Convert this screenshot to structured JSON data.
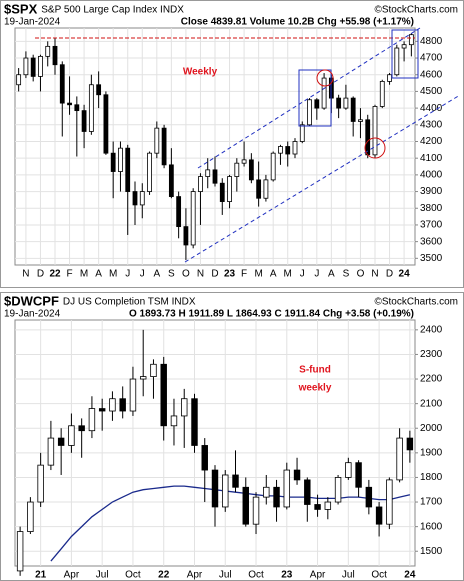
{
  "chart_data": [
    {
      "type": "candlestick",
      "symbol": "$SPX",
      "title": "S&P 500 Large Cap Index INDX",
      "source": "©StockCharts.com",
      "date": "19-Jan-2024",
      "info": "Close 4839.81 Volume 10.2B Chg +55.98 (+1.17%)",
      "annotations": [
        "Weekly"
      ],
      "color": "#000000",
      "grid": true,
      "categories": [
        null,
        "N",
        null,
        "D",
        null,
        "22",
        null,
        "F",
        null,
        "M",
        null,
        "A",
        null,
        "M",
        null,
        "J",
        null,
        "J",
        null,
        "A",
        null,
        "S",
        null,
        "O",
        null,
        "N",
        null,
        "D",
        null,
        "23",
        null,
        "F",
        null,
        "M",
        null,
        "A",
        null,
        "M",
        null,
        "J",
        null,
        "J",
        null,
        "A",
        null,
        "S",
        null,
        "O",
        null,
        "N",
        null,
        "D",
        null,
        "24",
        null
      ],
      "values": [
        [
          4540,
          4640,
          4500,
          4600
        ],
        [
          4600,
          4740,
          4580,
          4700
        ],
        [
          4700,
          4720,
          4560,
          4590
        ],
        [
          4590,
          4720,
          4500,
          4710
        ],
        [
          4710,
          4800,
          4650,
          4770
        ],
        [
          4770,
          4820,
          4600,
          4660
        ],
        [
          4660,
          4680,
          4230,
          4430
        ],
        [
          4430,
          4590,
          4360,
          4420
        ],
        [
          4420,
          4470,
          4110,
          4385
        ],
        [
          4385,
          4420,
          4160,
          4260
        ],
        [
          4260,
          4600,
          4240,
          4540
        ],
        [
          4540,
          4620,
          4400,
          4480
        ],
        [
          4480,
          4500,
          4120,
          4130
        ],
        [
          4130,
          4200,
          3860,
          4020
        ],
        [
          4020,
          4200,
          3900,
          4160
        ],
        [
          4160,
          4180,
          3640,
          3900
        ],
        [
          3900,
          3960,
          3700,
          3820
        ],
        [
          3820,
          3950,
          3740,
          3900
        ],
        [
          3900,
          4140,
          3880,
          4130
        ],
        [
          4130,
          4320,
          4100,
          4280
        ],
        [
          4280,
          4300,
          4040,
          4060
        ],
        [
          4060,
          4160,
          3860,
          3870
        ],
        [
          3870,
          3900,
          3620,
          3690
        ],
        [
          3690,
          3800,
          3490,
          3580
        ],
        [
          3580,
          3920,
          3560,
          3900
        ],
        [
          3900,
          4010,
          3700,
          3990
        ],
        [
          3990,
          4100,
          3920,
          4030
        ],
        [
          4030,
          4110,
          3930,
          3950
        ],
        [
          3950,
          3980,
          3760,
          3840
        ],
        [
          3840,
          4000,
          3800,
          3990
        ],
        [
          3990,
          4100,
          3900,
          4070
        ],
        [
          4070,
          4200,
          4050,
          4090
        ],
        [
          4090,
          4130,
          3950,
          3970
        ],
        [
          3970,
          4080,
          3810,
          3860
        ],
        [
          3860,
          4000,
          3840,
          3970
        ],
        [
          3970,
          4140,
          3960,
          4130
        ],
        [
          4130,
          4180,
          4060,
          4170
        ],
        [
          4170,
          4200,
          4050,
          4125
        ],
        [
          4125,
          4220,
          4100,
          4200
        ],
        [
          4200,
          4320,
          4190,
          4300
        ],
        [
          4300,
          4460,
          4290,
          4450
        ],
        [
          4450,
          4460,
          4330,
          4400
        ],
        [
          4400,
          4610,
          4390,
          4580
        ],
        [
          4580,
          4600,
          4370,
          4460
        ],
        [
          4460,
          4480,
          4340,
          4400
        ],
        [
          4400,
          4540,
          4390,
          4460
        ],
        [
          4460,
          4470,
          4230,
          4320
        ],
        [
          4320,
          4400,
          4220,
          4330
        ],
        [
          4330,
          4360,
          4100,
          4120
        ],
        [
          4120,
          4420,
          4100,
          4410
        ],
        [
          4410,
          4570,
          4400,
          4560
        ],
        [
          4560,
          4610,
          4540,
          4600
        ],
        [
          4600,
          4780,
          4590,
          4760
        ],
        [
          4760,
          4800,
          4680,
          4780
        ],
        [
          4780,
          4850,
          4710,
          4840
        ]
      ],
      "ylim": [
        3460,
        4880
      ],
      "yticks": [
        3500,
        3600,
        3700,
        3800,
        3900,
        4000,
        4100,
        4200,
        4300,
        4400,
        4500,
        4600,
        4700,
        4800
      ]
    },
    {
      "type": "candlestick",
      "symbol": "$DWCPF",
      "title": "DJ US Completion TSM INDX",
      "source": "©StockCharts.com",
      "date": "19-Jan-2024",
      "info": "O 1893.73 H 1911.89 L 1864.93 C 1911.84 Chg +3.58 (+0.19%)",
      "annotations": [
        "S-fund",
        "weekly"
      ],
      "color": "#000000",
      "grid": true,
      "categories": [
        null,
        null,
        "21",
        null,
        null,
        "Apr",
        null,
        null,
        "Jul",
        null,
        null,
        "Oct",
        null,
        null,
        "22",
        null,
        null,
        "Apr",
        null,
        null,
        "Jul",
        null,
        null,
        "Oct",
        null,
        null,
        "23",
        null,
        null,
        "Apr",
        null,
        null,
        "Jul",
        null,
        null,
        "Oct",
        null,
        null,
        "24"
      ],
      "values": [
        [
          1420,
          1600,
          1400,
          1580
        ],
        [
          1580,
          1720,
          1570,
          1700
        ],
        [
          1700,
          1900,
          1680,
          1850
        ],
        [
          1850,
          2030,
          1830,
          1960
        ],
        [
          1960,
          2000,
          1810,
          1930
        ],
        [
          1930,
          2060,
          1900,
          2010
        ],
        [
          2010,
          2040,
          1880,
          1990
        ],
        [
          1990,
          2130,
          1960,
          2080
        ],
        [
          2080,
          2120,
          1990,
          2070
        ],
        [
          2070,
          2150,
          2030,
          2120
        ],
        [
          2120,
          2170,
          2040,
          2070
        ],
        [
          2070,
          2250,
          2050,
          2200
        ],
        [
          2200,
          2400,
          2130,
          2210
        ],
        [
          2210,
          2280,
          2120,
          2260
        ],
        [
          2260,
          2290,
          1950,
          2010
        ],
        [
          2010,
          2120,
          1930,
          2050
        ],
        [
          2050,
          2160,
          1920,
          2120
        ],
        [
          2120,
          2140,
          1900,
          1930
        ],
        [
          1930,
          1960,
          1700,
          1830
        ],
        [
          1830,
          1850,
          1600,
          1680
        ],
        [
          1680,
          1830,
          1660,
          1810
        ],
        [
          1810,
          1910,
          1740,
          1760
        ],
        [
          1760,
          1800,
          1600,
          1610
        ],
        [
          1610,
          1740,
          1570,
          1720
        ],
        [
          1720,
          1810,
          1690,
          1760
        ],
        [
          1760,
          1790,
          1620,
          1680
        ],
        [
          1680,
          1860,
          1670,
          1830
        ],
        [
          1830,
          1880,
          1770,
          1790
        ],
        [
          1790,
          1800,
          1620,
          1690
        ],
        [
          1690,
          1730,
          1640,
          1670
        ],
        [
          1670,
          1720,
          1630,
          1700
        ],
        [
          1700,
          1810,
          1690,
          1800
        ],
        [
          1800,
          1880,
          1790,
          1860
        ],
        [
          1860,
          1870,
          1720,
          1760
        ],
        [
          1760,
          1790,
          1650,
          1680
        ],
        [
          1680,
          1700,
          1560,
          1610
        ],
        [
          1610,
          1800,
          1590,
          1790
        ],
        [
          1790,
          2000,
          1780,
          1960
        ],
        [
          1960,
          1990,
          1860,
          1912
        ]
      ],
      "overlay": {
        "color": "#1a2a8c",
        "values": [
          null,
          null,
          null,
          1460,
          1510,
          1560,
          1600,
          1640,
          1670,
          1700,
          1720,
          1740,
          1750,
          1755,
          1760,
          1765,
          1765,
          1760,
          1755,
          1750,
          1745,
          1740,
          1735,
          1730,
          1725,
          1725,
          1720,
          1720,
          1720,
          1715,
          1715,
          1715,
          1720,
          1720,
          1715,
          1710,
          1710,
          1720,
          1730
        ]
      },
      "ylim": [
        1440,
        2440
      ],
      "yticks": [
        1500,
        1600,
        1700,
        1800,
        1900,
        2000,
        2100,
        2200,
        2300,
        2400
      ]
    }
  ]
}
